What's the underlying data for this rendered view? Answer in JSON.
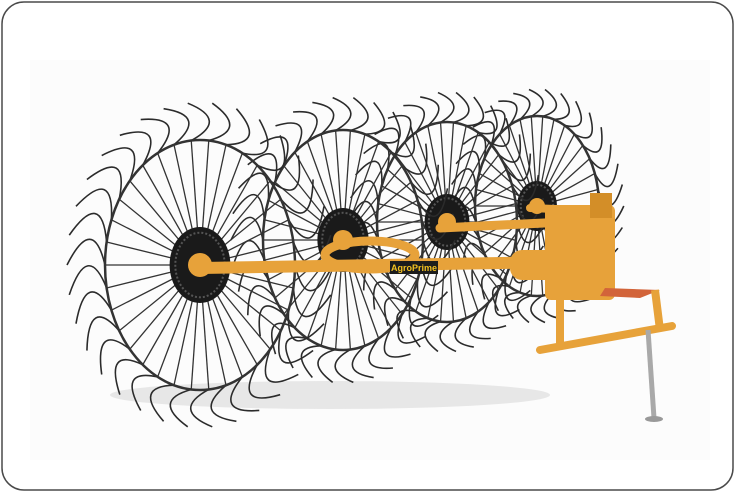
{
  "image": {
    "logo": "AgroPrime"
  }
}
